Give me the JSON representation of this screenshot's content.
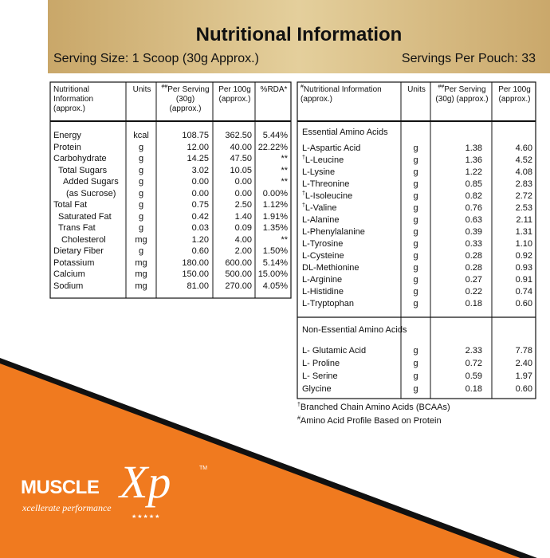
{
  "header": {
    "title": "Nutritional Information",
    "serving_size": "Serving Size: 1 Scoop (30g Approx.)",
    "servings": "Servings Per Pouch: 33"
  },
  "left_table": {
    "headers": [
      {
        "text": "Nutritional Information (approx.)"
      },
      {
        "text": "Units"
      },
      {
        "mark": "##",
        "text": "Per Serving (30g) (approx.)"
      },
      {
        "text": "Per 100g (approx.)"
      },
      {
        "text": "%RDA*"
      }
    ],
    "rows": [
      [
        "Energy",
        "kcal",
        "108.75",
        "362.50",
        "5.44%"
      ],
      [
        "Protein",
        "g",
        "12.00",
        "40.00",
        "22.22%"
      ],
      [
        "Carbohydrate",
        "g",
        "14.25",
        "47.50",
        "**"
      ],
      [
        "Total Sugars",
        "g",
        "3.02",
        "10.05",
        "**"
      ],
      [
        "Added Sugars",
        "g",
        "0.00",
        "0.00",
        "**"
      ],
      [
        "(as Sucrose)",
        "g",
        "0.00",
        "0.00",
        "0.00%"
      ],
      [
        "Total Fat",
        "g",
        "0.75",
        "2.50",
        "1.12%"
      ],
      [
        "Saturated Fat",
        "g",
        "0.42",
        "1.40",
        "1.91%"
      ],
      [
        "Trans Fat",
        "g",
        "0.03",
        "0.09",
        "1.35%"
      ],
      [
        "Cholesterol",
        "mg",
        "1.20",
        "4.00",
        "**"
      ],
      [
        "Dietary Fiber",
        "g",
        "0.60",
        "2.00",
        "1.50%"
      ],
      [
        "Potassium",
        "mg",
        "180.00",
        "600.00",
        "5.14%"
      ],
      [
        "Calcium",
        "mg",
        "150.00",
        "500.00",
        "15.00%"
      ],
      [
        "Sodium",
        "mg",
        "81.00",
        "270.00",
        "4.05%"
      ]
    ]
  },
  "right_table": {
    "headers": [
      {
        "mark": "#",
        "text": "Nutritional Information (approx.)"
      },
      {
        "text": "Units"
      },
      {
        "mark": "##",
        "text": "Per Serving (30g) (approx.)"
      },
      {
        "text": "Per 100g (approx.)"
      }
    ],
    "sections": [
      {
        "title": "Essential Amino Acids",
        "rows": [
          {
            "text": "L-Aspartic Acid",
            "unit": "g",
            "per_serving": "1.38",
            "per_100g": "4.60"
          },
          {
            "text": "L-Leucine",
            "mark": "†",
            "unit": "g",
            "per_serving": "1.36",
            "per_100g": "4.52"
          },
          {
            "text": "L-Lysine",
            "unit": "g",
            "per_serving": "1.22",
            "per_100g": "4.08"
          },
          {
            "text": "L-Threonine",
            "unit": "g",
            "per_serving": "0.85",
            "per_100g": "2.83"
          },
          {
            "text": "L-Isoleucine",
            "mark": "†",
            "unit": "g",
            "per_serving": "0.82",
            "per_100g": "2.72"
          },
          {
            "text": "L-Valine",
            "mark": "†",
            "unit": "g",
            "per_serving": "0.76",
            "per_100g": "2.53"
          },
          {
            "text": "L-Alanine",
            "unit": "g",
            "per_serving": "0.63",
            "per_100g": "2.11"
          },
          {
            "text": "L-Phenylalanine",
            "unit": "g",
            "per_serving": "0.39",
            "per_100g": "1.31"
          },
          {
            "text": "L-Tyrosine",
            "unit": "g",
            "per_serving": "0.33",
            "per_100g": "1.10"
          },
          {
            "text": "L-Cysteine",
            "unit": "g",
            "per_serving": "0.28",
            "per_100g": "0.92"
          },
          {
            "text": "DL-Methionine",
            "unit": "g",
            "per_serving": "0.28",
            "per_100g": "0.93"
          },
          {
            "text": "L-Arginine",
            "unit": "g",
            "per_serving": "0.27",
            "per_100g": "0.91"
          },
          {
            "text": "L-Histidine",
            "unit": "g",
            "per_serving": "0.22",
            "per_100g": "0.74"
          },
          {
            "text": "L-Tryptophan",
            "unit": "g",
            "per_serving": "0.18",
            "per_100g": "0.60"
          }
        ]
      },
      {
        "title": "Non-Essential Amino Acids",
        "rows": [
          {
            "text": "L- Glutamic Acid",
            "unit": "g",
            "per_serving": "2.33",
            "per_100g": "7.78"
          },
          {
            "text": "L- Proline",
            "unit": "g",
            "per_serving": "0.72",
            "per_100g": "2.40"
          },
          {
            "text": "L- Serine",
            "unit": "g",
            "per_serving": "0.59",
            "per_100g": "1.97"
          },
          {
            "text": "Glycine",
            "unit": "g",
            "per_serving": "0.18",
            "per_100g": "0.60"
          }
        ]
      }
    ]
  },
  "footnotes": [
    {
      "mark": "†",
      "text": "Branched Chain Amino Acids (BCAAs)"
    },
    {
      "mark": "#",
      "text": "Amino Acid Profile Based on Protein"
    }
  ],
  "logo": {
    "brand": "MUSCLE",
    "mark": "Xp",
    "tm": "TM",
    "tagline": "xcellerate performance",
    "stars": "★★★★★"
  }
}
